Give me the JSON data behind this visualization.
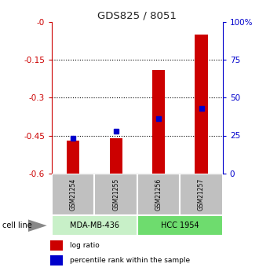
{
  "title": "GDS825 / 8051",
  "samples": [
    "GSM21254",
    "GSM21255",
    "GSM21256",
    "GSM21257"
  ],
  "log_ratios": [
    -0.47,
    -0.46,
    -0.19,
    -0.05
  ],
  "percentile_ranks": [
    23,
    28,
    36,
    43
  ],
  "left_ylim": [
    -0.6,
    0.0
  ],
  "left_yticks": [
    0.0,
    -0.15,
    -0.3,
    -0.45,
    -0.6
  ],
  "left_ytick_labels": [
    "-0",
    "-0.15",
    "-0.3",
    "-0.45",
    "-0.6"
  ],
  "right_yticks": [
    0,
    25,
    50,
    75,
    100
  ],
  "right_ytick_labels": [
    "0",
    "25",
    "50",
    "75",
    "100%"
  ],
  "cell_lines": [
    {
      "label": "MDA-MB-436",
      "samples": [
        0,
        1
      ],
      "color": "#c8f0c8"
    },
    {
      "label": "HCC 1954",
      "samples": [
        2,
        3
      ],
      "color": "#6edc6e"
    }
  ],
  "cell_line_label": "cell line",
  "bar_color": "#cc0000",
  "percentile_color": "#0000cc",
  "bar_width": 0.3,
  "legend_red": "log ratio",
  "legend_blue": "percentile rank within the sample",
  "sample_box_color": "#c0c0c0",
  "title_color": "#222222",
  "left_axis_color": "#cc0000",
  "right_axis_color": "#0000cc"
}
